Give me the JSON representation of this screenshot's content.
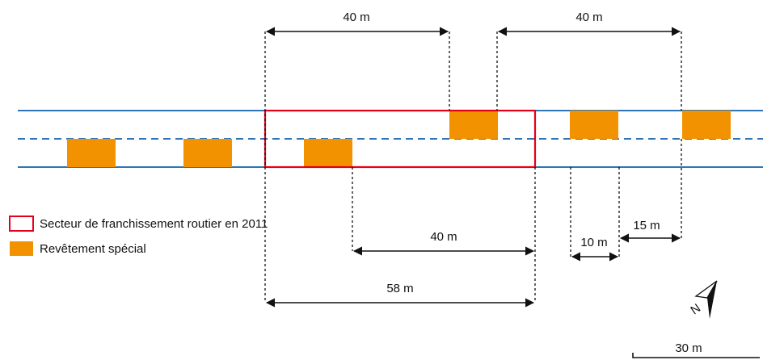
{
  "colors": {
    "road_line": "#2e75b6",
    "special_surface": "#f39200",
    "crossing_sector": "#e3001b",
    "dimension": "#111111"
  },
  "legend": {
    "crossing_sector_label": "Secteur de franchissement routier en 2011",
    "special_surface_label": "Revêtement spécial"
  },
  "dimensions": {
    "top_left": "40 m",
    "top_right": "40 m",
    "bottom_inner": "40 m",
    "bottom_total": "58 m",
    "small_gap": "10 m",
    "small_spacing": "15 m"
  },
  "north_arrow": {
    "label": "N",
    "icon": "north-arrow-icon"
  },
  "scale_bar": {
    "label": "30 m"
  }
}
